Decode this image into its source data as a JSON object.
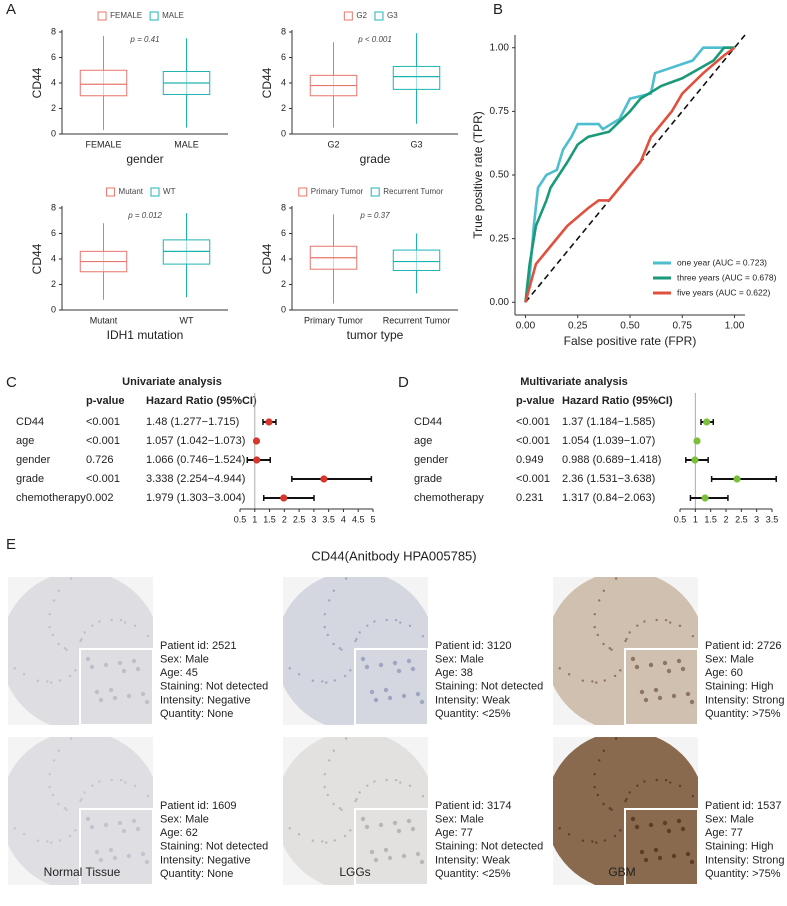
{
  "panel_labels": [
    "A",
    "B",
    "C",
    "D",
    "E"
  ],
  "chart_data": [
    {
      "type": "box",
      "ylabel": "CD44",
      "xlabel": "gender",
      "annotation": "p = 0.41",
      "categories": [
        "FEMALE",
        "MALE"
      ],
      "colors": [
        "#e8766d",
        "#1db3b3"
      ],
      "low": [
        0.3,
        0.5
      ],
      "q1": [
        3.0,
        3.1
      ],
      "median": [
        3.9,
        4.0
      ],
      "q3": [
        5.0,
        4.9
      ],
      "high": [
        7.7,
        7.5
      ],
      "ylim": [
        0,
        8
      ],
      "yticks": [
        0,
        2,
        4,
        6,
        8
      ]
    },
    {
      "type": "box",
      "ylabel": "CD44",
      "xlabel": "grade",
      "annotation": "p < 0.001",
      "categories": [
        "G2",
        "G3"
      ],
      "colors": [
        "#e8766d",
        "#1db3b3"
      ],
      "low": [
        0.5,
        0.8
      ],
      "q1": [
        3.0,
        3.5
      ],
      "median": [
        3.8,
        4.5
      ],
      "q3": [
        4.6,
        5.3
      ],
      "high": [
        7.2,
        7.9
      ],
      "ylim": [
        0,
        8
      ],
      "yticks": [
        0,
        2,
        4,
        6,
        8
      ]
    },
    {
      "type": "box",
      "ylabel": "CD44",
      "xlabel": "IDH1 mutation",
      "annotation": "p = 0.012",
      "categories": [
        "Mutant",
        "WT"
      ],
      "colors": [
        "#e8766d",
        "#1db3b3"
      ],
      "low": [
        0.8,
        1.0
      ],
      "q1": [
        3.0,
        3.6
      ],
      "median": [
        3.8,
        4.6
      ],
      "q3": [
        4.6,
        5.5
      ],
      "high": [
        6.8,
        7.6
      ],
      "ylim": [
        0,
        8
      ],
      "yticks": [
        0,
        2,
        4,
        6,
        8
      ]
    },
    {
      "type": "box",
      "ylabel": "CD44",
      "xlabel": "tumor type",
      "annotation": "p = 0.37",
      "categories": [
        "Primary Tumor",
        "Recurrent Tumor"
      ],
      "colors": [
        "#e8766d",
        "#1db3b3"
      ],
      "low": [
        0.5,
        1.3
      ],
      "q1": [
        3.2,
        3.1
      ],
      "median": [
        4.1,
        3.8
      ],
      "q3": [
        5.0,
        4.7
      ],
      "high": [
        7.5,
        6.0
      ],
      "ylim": [
        0,
        8
      ],
      "yticks": [
        0,
        2,
        4,
        6,
        8
      ]
    },
    {
      "type": "line",
      "xlabel": "False positive rate (FPR)",
      "ylabel": "True positive rate (TPR)",
      "xlim": [
        -0.05,
        1.05
      ],
      "ylim": [
        -0.05,
        1.05
      ],
      "xticks": [
        {
          "value": 0,
          "label": "0.00"
        },
        {
          "value": 0.25,
          "label": "0.25"
        },
        {
          "value": 0.5,
          "label": "0.50"
        },
        {
          "value": 0.75,
          "label": "0.75"
        },
        {
          "value": 1,
          "label": "1.00"
        }
      ],
      "yticks": [
        {
          "value": 0,
          "label": "0.00"
        },
        {
          "value": 0.25,
          "label": "0.25"
        },
        {
          "value": 0.5,
          "label": "0.50"
        },
        {
          "value": 0.75,
          "label": "0.75"
        },
        {
          "value": 1,
          "label": "1.00"
        }
      ],
      "legend": "lower right",
      "series": [
        {
          "name": "one year (AUC = 0.723)",
          "color": "#4dbdd0",
          "x": [
            0,
            0.02,
            0.04,
            0.06,
            0.1,
            0.15,
            0.18,
            0.22,
            0.25,
            0.35,
            0.37,
            0.45,
            0.5,
            0.6,
            0.62,
            0.8,
            0.85,
            1
          ],
          "values": [
            0,
            0.1,
            0.3,
            0.45,
            0.5,
            0.52,
            0.6,
            0.65,
            0.7,
            0.7,
            0.68,
            0.72,
            0.8,
            0.82,
            0.9,
            0.95,
            1,
            1
          ]
        },
        {
          "name": "three years (AUC = 0.678)",
          "color": "#1a9a78",
          "x": [
            0,
            0.02,
            0.05,
            0.1,
            0.12,
            0.2,
            0.25,
            0.3,
            0.4,
            0.5,
            0.55,
            0.65,
            0.75,
            0.9,
            0.95,
            1
          ],
          "values": [
            0,
            0.15,
            0.3,
            0.4,
            0.45,
            0.55,
            0.62,
            0.65,
            0.67,
            0.75,
            0.8,
            0.85,
            0.88,
            0.95,
            1,
            1
          ]
        },
        {
          "name": "five years (AUC = 0.622)",
          "color": "#e0503f",
          "x": [
            0,
            0.05,
            0.1,
            0.15,
            0.2,
            0.3,
            0.35,
            0.4,
            0.5,
            0.55,
            0.6,
            0.7,
            0.75,
            0.85,
            0.95,
            1
          ],
          "values": [
            0,
            0.15,
            0.2,
            0.25,
            0.3,
            0.37,
            0.4,
            0.4,
            0.5,
            0.55,
            0.65,
            0.75,
            0.82,
            0.9,
            0.97,
            1
          ]
        }
      ]
    },
    {
      "type": "forest",
      "title": "Univariate analysis",
      "headers": [
        "p-value",
        "Hazard Ratio (95%CI)"
      ],
      "categories": [
        "CD44",
        "age",
        "gender",
        "grade",
        "chemotherapy"
      ],
      "pvalues": [
        "<0.001",
        "<0.001",
        "0.726",
        "<0.001",
        "0.002"
      ],
      "values": [
        1.48,
        1.057,
        1.066,
        3.338,
        1.979
      ],
      "lower": [
        1.277,
        1.042,
        0.746,
        2.254,
        1.303
      ],
      "upper": [
        1.715,
        1.073,
        1.524,
        4.944,
        3.004
      ],
      "value_labels": [
        "1.48 (1.277−1.715)",
        "1.057 (1.042−1.073)",
        "1.066 (0.746−1.524)",
        "3.338 (2.254−4.944)",
        "1.979 (1.303−3.004)"
      ],
      "color": "#d8362b",
      "reference": 1,
      "xlim": [
        0.5,
        5
      ],
      "xticks": [
        0.5,
        1,
        1.5,
        2,
        2.5,
        3,
        3.5,
        4,
        4.5,
        5
      ]
    },
    {
      "type": "forest",
      "title": "Multivariate analysis",
      "headers": [
        "p-value",
        "Hazard Ratio (95%CI)"
      ],
      "categories": [
        "CD44",
        "age",
        "gender",
        "grade",
        "chemotherapy"
      ],
      "pvalues": [
        "<0.001",
        "<0.001",
        "0.949",
        "<0.001",
        "0.231"
      ],
      "values": [
        1.37,
        1.054,
        0.988,
        2.36,
        1.317
      ],
      "lower": [
        1.184,
        1.039,
        0.689,
        1.531,
        0.84
      ],
      "upper": [
        1.585,
        1.07,
        1.418,
        3.638,
        2.063
      ],
      "value_labels": [
        "1.37 (1.184−1.585)",
        "1.054 (1.039−1.07)",
        "0.988 (0.689−1.418)",
        "2.36 (1.531−3.638)",
        "1.317 (0.84−2.063)"
      ],
      "color": "#7cbf3a",
      "reference": 1,
      "xlim": [
        0.5,
        3.5
      ],
      "xticks": [
        0.5,
        1,
        1.5,
        2,
        2.5,
        3,
        3.5
      ]
    }
  ],
  "ihc": {
    "title": "CD44(Anitbody HPA005785)",
    "groups": [
      {
        "label": "Normal Tissue",
        "cases": [
          {
            "lines": [
              "Patient id: 2521",
              "Sex: Male",
              "Age: 45",
              "Staining: Not detected",
              "Intensity: Negative",
              "Quantity: None"
            ]
          },
          {
            "lines": [
              "Patient id: 1609",
              "Sex: Male",
              "Age: 62",
              "Staining: Not detected",
              "Intensity: Negative",
              "Quantity: None"
            ]
          }
        ]
      },
      {
        "label": "LGGs",
        "cases": [
          {
            "lines": [
              "Patient id: 3120",
              "Sex: Male",
              "Age: 38",
              "Staining: Not detected",
              "Intensity: Weak",
              "Quantity: <25%"
            ]
          },
          {
            "lines": [
              "Patient id: 3174",
              "Sex: Male",
              "Age: 77",
              "Staining: Not detected",
              "Intensity: Weak",
              "Quantity: <25%"
            ]
          }
        ]
      },
      {
        "label": "GBM",
        "cases": [
          {
            "lines": [
              "Patient id: 2726",
              "Sex: Male",
              "Age: 60",
              "Staining: High",
              "Intensity: Strong",
              "Quantity: >75%"
            ]
          },
          {
            "lines": [
              "Patient id: 1537",
              "Sex: Male",
              "Age: 77",
              "Staining: High",
              "Intensity: Strong",
              "Quantity: >75%"
            ]
          }
        ]
      }
    ]
  }
}
